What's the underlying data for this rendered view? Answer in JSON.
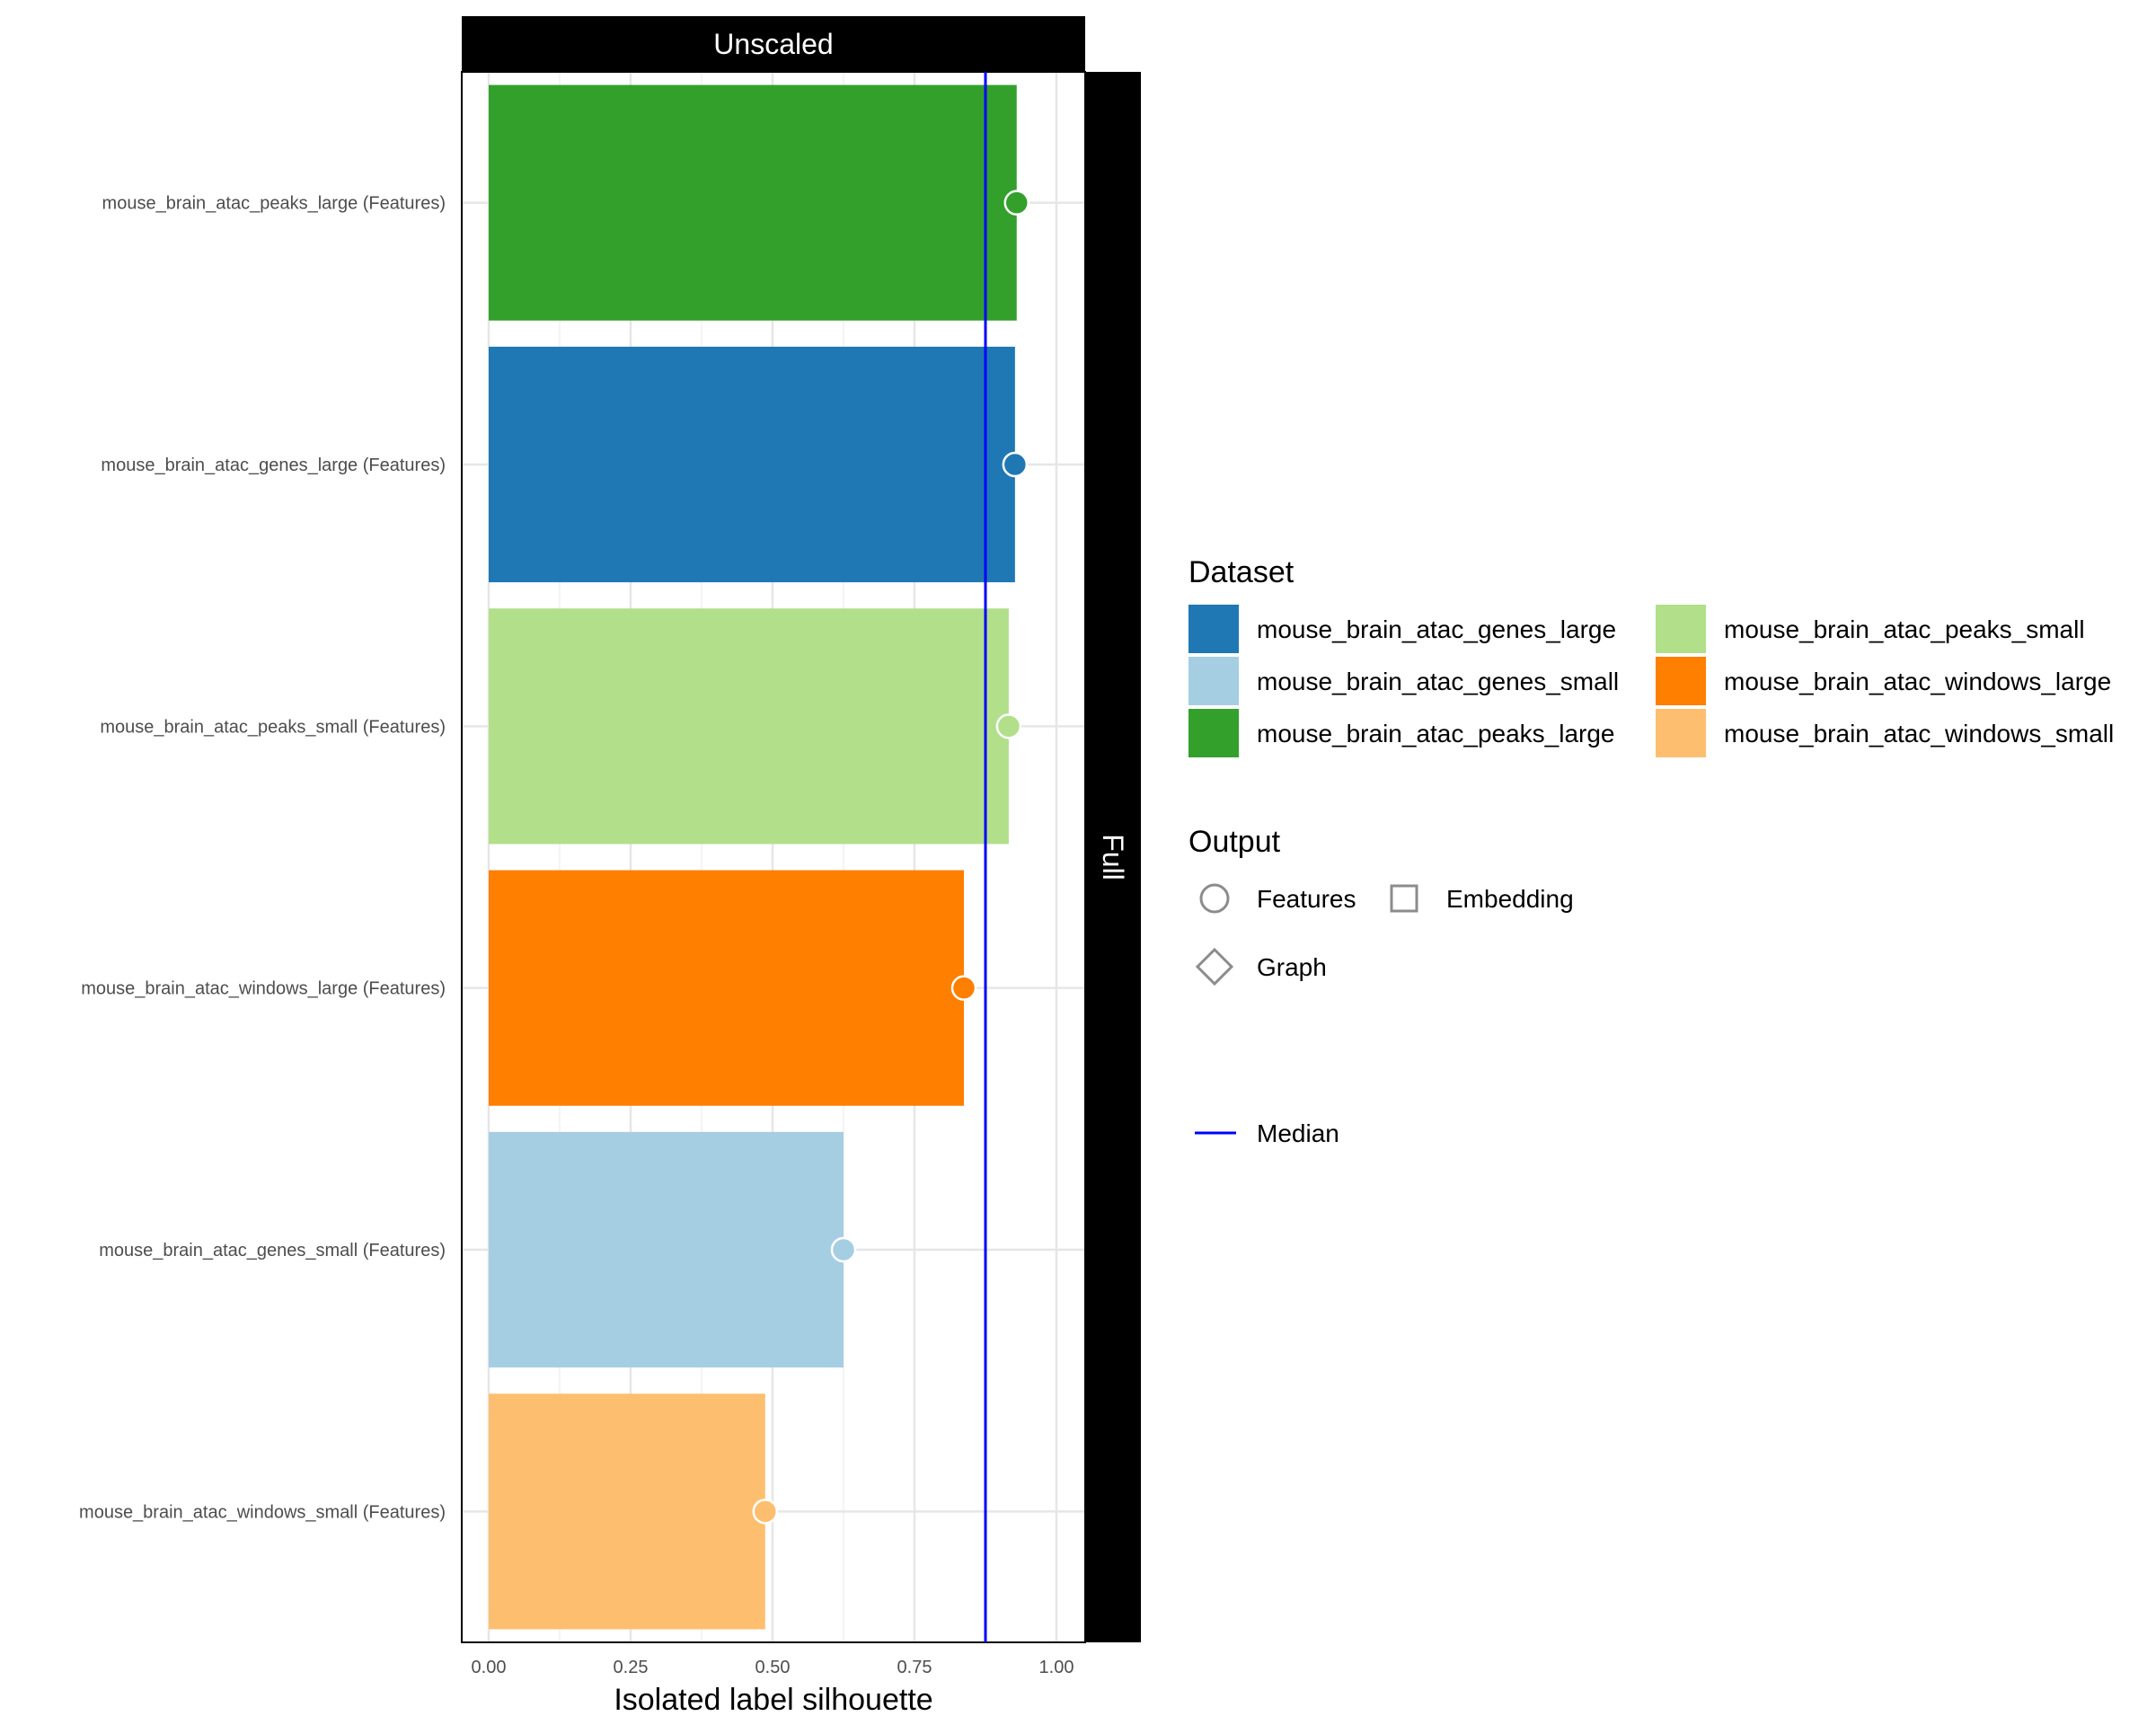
{
  "chart_data": {
    "type": "bar",
    "orientation": "horizontal",
    "facet_column": "Unscaled",
    "facet_row": "Full",
    "xlabel": "Isolated label silhouette",
    "ylabel": "",
    "xlim": [
      0,
      1.05
    ],
    "x_ticks": [
      "0.00",
      "0.25",
      "0.50",
      "0.75",
      "1.00"
    ],
    "x_tick_values": [
      0,
      0.25,
      0.5,
      0.75,
      1.0
    ],
    "median": 0.875,
    "grid": true,
    "legend_position": "right",
    "categories": [
      "mouse_brain_atac_peaks_large (Features)",
      "mouse_brain_atac_genes_large (Features)",
      "mouse_brain_atac_peaks_small (Features)",
      "mouse_brain_atac_windows_large (Features)",
      "mouse_brain_atac_genes_small (Features)",
      "mouse_brain_atac_windows_small (Features)"
    ],
    "values": [
      0.93,
      0.927,
      0.916,
      0.837,
      0.625,
      0.487
    ],
    "bar_datasets": [
      "mouse_brain_atac_peaks_large",
      "mouse_brain_atac_genes_large",
      "mouse_brain_atac_peaks_small",
      "mouse_brain_atac_windows_large",
      "mouse_brain_atac_genes_small",
      "mouse_brain_atac_windows_small"
    ],
    "point_shape": "Features",
    "legend_dataset": {
      "title": "Dataset",
      "items": [
        {
          "label": "mouse_brain_atac_genes_large",
          "color": "#1f78b4"
        },
        {
          "label": "mouse_brain_atac_genes_small",
          "color": "#a6cee3"
        },
        {
          "label": "mouse_brain_atac_peaks_large",
          "color": "#33a02c"
        },
        {
          "label": "mouse_brain_atac_peaks_small",
          "color": "#b2df8a"
        },
        {
          "label": "mouse_brain_atac_windows_large",
          "color": "#ff7f00"
        },
        {
          "label": "mouse_brain_atac_windows_small",
          "color": "#fdbf6f"
        }
      ]
    },
    "legend_output": {
      "title": "Output",
      "items": [
        {
          "label": "Features",
          "shape": "circle"
        },
        {
          "label": "Embedding",
          "shape": "square"
        },
        {
          "label": "Graph",
          "shape": "diamond"
        }
      ]
    },
    "legend_median": {
      "label": "Median",
      "color": "#0000ff"
    }
  }
}
